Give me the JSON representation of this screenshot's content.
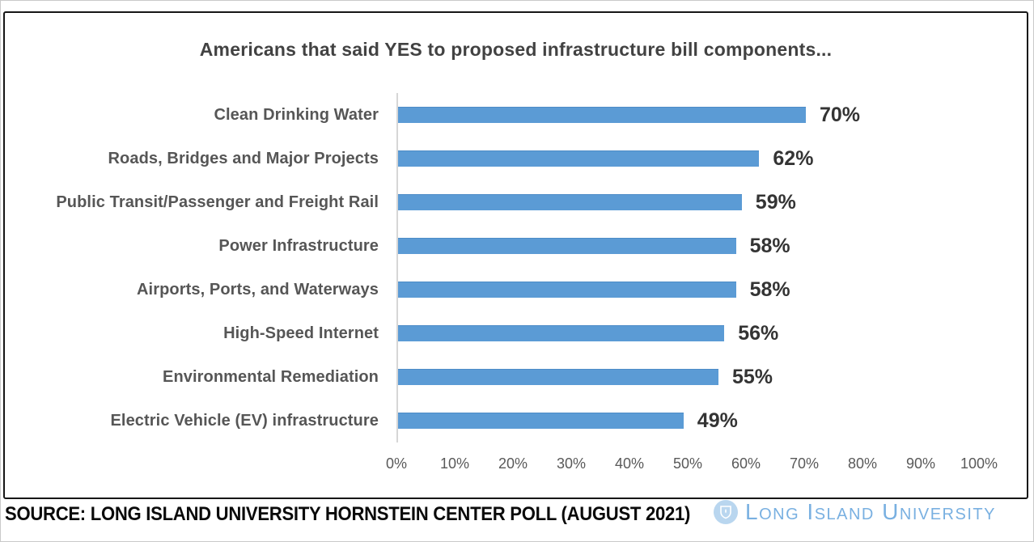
{
  "title": "Americans that said YES to proposed infrastructure bill components...",
  "chart_data": {
    "type": "bar",
    "orientation": "horizontal",
    "title": "Americans that said YES to proposed infrastructure bill components...",
    "categories": [
      "Clean Drinking Water",
      "Roads, Bridges and Major Projects",
      "Public Transit/Passenger and Freight Rail",
      "Power Infrastructure",
      "Airports, Ports, and Waterways",
      "High-Speed Internet",
      "Environmental Remediation",
      "Electric Vehicle (EV) infrastructure"
    ],
    "values": [
      70,
      62,
      59,
      58,
      58,
      56,
      55,
      49
    ],
    "value_labels": [
      "70%",
      "62%",
      "59%",
      "58%",
      "58%",
      "56%",
      "55%",
      "49%"
    ],
    "x_ticks": [
      "0%",
      "10%",
      "20%",
      "30%",
      "40%",
      "50%",
      "60%",
      "70%",
      "80%",
      "90%",
      "100%"
    ],
    "xlim": [
      0,
      100
    ],
    "xlabel": "",
    "ylabel": "",
    "grid": false,
    "legend": false,
    "bar_color": "#5b9bd5"
  },
  "footer": {
    "source": "SOURCE: LONG ISLAND UNIVERSITY HORNSTEIN CENTER POLL (AUGUST 2021)",
    "logo_text": "Long Island University",
    "logo_color": "#79b0e1"
  }
}
